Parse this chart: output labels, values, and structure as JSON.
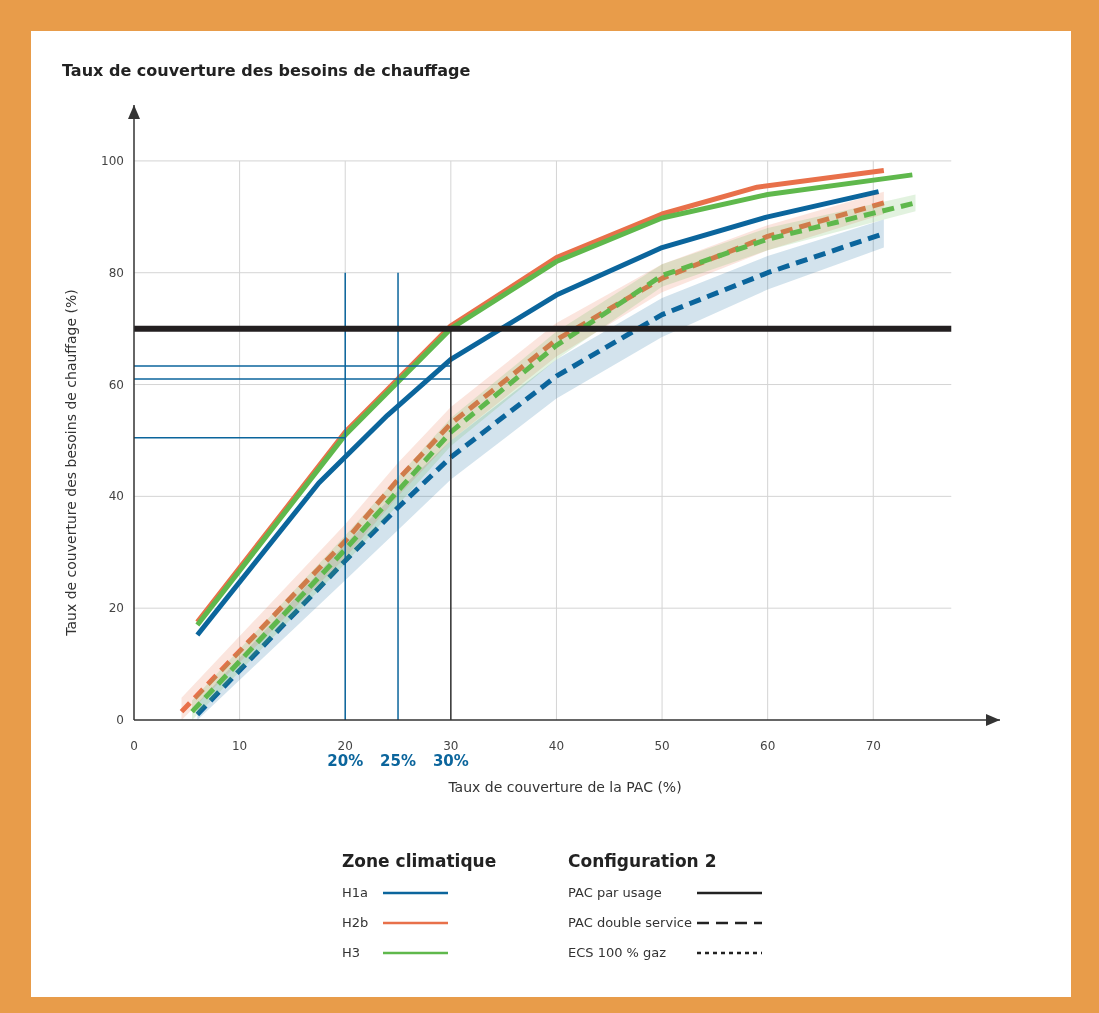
{
  "chart_data": {
    "type": "line",
    "title": "Taux de couverture des besoins de chauffage",
    "xlabel": "Taux de couverture de la PAC (%)",
    "ylabel": "Taux de couverture des besoins de chauffage (%)",
    "legend_title": "Zone climatique",
    "legend": "bottom",
    "grid": true,
    "xlim": [
      0,
      82
    ],
    "xticks": [
      0,
      10,
      20,
      30,
      40,
      50,
      60,
      70
    ],
    "ylim": [
      0,
      110
    ],
    "yticks": [
      0,
      20,
      40,
      60,
      80,
      100
    ],
    "series": [
      {
        "name": "H1a",
        "color": "#0b659c",
        "line_style": "solid",
        "x": [
          6,
          17.5,
          24,
          30,
          40,
          50,
          60,
          70.5
        ],
        "values": [
          15.2,
          42.4,
          54.5,
          64.5,
          76,
          84.5,
          90,
          94.5
        ]
      },
      {
        "name": "H2b",
        "color": "#e8704a",
        "line_style": "solid",
        "x": [
          6,
          20,
          30,
          40,
          50,
          59,
          71
        ],
        "values": [
          17.5,
          51.5,
          70.5,
          82.7,
          90.5,
          95.3,
          98.3
        ]
      },
      {
        "name": "H3",
        "color": "#5fb84c",
        "line_style": "solid",
        "x": [
          6,
          20,
          30,
          40,
          50,
          60,
          73.7
        ],
        "values": [
          17,
          51,
          70,
          82,
          89.8,
          94,
          97.5
        ]
      },
      {
        "color": "#0b659c",
        "line_style": "dashed",
        "x": [
          6,
          20,
          25,
          30,
          40,
          50,
          60,
          71
        ],
        "values": [
          1,
          28.5,
          38,
          47,
          61.5,
          72.5,
          80,
          87
        ],
        "lower": [
          0,
          25,
          34,
          43,
          57.5,
          68.5,
          77,
          84.5
        ],
        "upper": [
          3,
          31.5,
          41,
          50,
          64.5,
          75.5,
          83,
          89.5
        ]
      },
      {
        "color": "#e8704a",
        "line_style": "dashed",
        "x": [
          4.5,
          20,
          25,
          30,
          40,
          50,
          60,
          71
        ],
        "values": [
          1.5,
          32,
          43,
          53,
          68,
          79,
          86.5,
          92.5
        ],
        "lower": [
          0,
          29,
          40,
          50,
          65,
          76.5,
          84,
          90.5
        ],
        "upper": [
          4,
          35,
          46,
          56,
          71,
          81.5,
          88.5,
          94.5
        ]
      },
      {
        "color": "#5fb84c",
        "line_style": "dashed",
        "x": [
          5.5,
          20,
          25,
          30,
          40,
          50,
          60,
          74
        ],
        "values": [
          1.5,
          30.5,
          41,
          51.5,
          67,
          79.5,
          86,
          92.5
        ],
        "lower": [
          0,
          28,
          38.5,
          49,
          64.5,
          77.5,
          84,
          91
        ],
        "upper": [
          3.5,
          33,
          43.5,
          54,
          69.5,
          81.5,
          88,
          94
        ]
      },
      {
        "color": "#0b659c",
        "x": [
          0,
          30
        ],
        "values": [
          63.3,
          63.3
        ]
      },
      {
        "color": "#0b659c",
        "x": [
          0,
          30
        ],
        "values": [
          61,
          61
        ]
      },
      {
        "color": "#0b659c",
        "x": [
          0,
          20
        ],
        "values": [
          50.5,
          50.5
        ]
      },
      {
        "color": "#0b659c",
        "x": [
          20,
          20
        ],
        "values": [
          0,
          80
        ]
      },
      {
        "color": "#0b659c",
        "x": [
          25,
          25
        ],
        "values": [
          0,
          80
        ]
      },
      {
        "color": "#333333",
        "x": [
          30,
          30
        ],
        "values": [
          0,
          70
        ]
      }
    ],
    "ref_lines": [
      {
        "axis": "y",
        "value": 70,
        "color": "#231f20"
      }
    ],
    "annotations": [
      {
        "text": "20%",
        "x": 20,
        "y": 0
      },
      {
        "text": "25%",
        "x": 25,
        "y": 0
      },
      {
        "text": "30%",
        "x": 30,
        "y": 0
      },
      "Configuration 2",
      "PAC par usage",
      "PAC double service",
      "ECS 100 % gaz"
    ]
  }
}
